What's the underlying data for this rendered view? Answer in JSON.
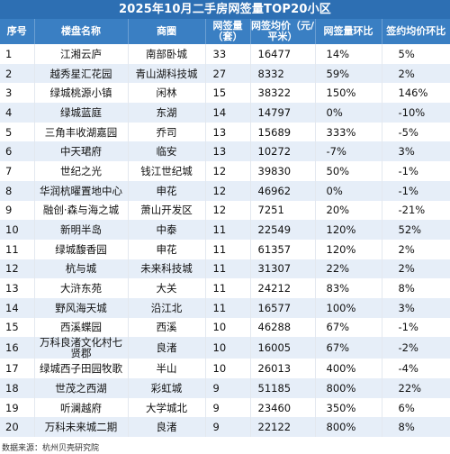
{
  "title": "2025年10月二手房网签量TOP20小区",
  "headers": {
    "rank": "序号",
    "name": "楼盘名称",
    "area": "商圈",
    "volume": "网签量（套）",
    "price": "网签均价（元/平米）",
    "volume_mom": "网签量环比",
    "price_mom": "签约均价环比"
  },
  "rows": [
    {
      "rank": "1",
      "name": "江湘云庐",
      "area": "南部卧城",
      "volume": "33",
      "price": "16477",
      "volume_mom": "14%",
      "price_mom": "5%"
    },
    {
      "rank": "2",
      "name": "越秀星汇花园",
      "area": "青山湖科技城",
      "volume": "27",
      "price": "8332",
      "volume_mom": "59%",
      "price_mom": "2%"
    },
    {
      "rank": "3",
      "name": "绿城桃源小镇",
      "area": "闲林",
      "volume": "15",
      "price": "38322",
      "volume_mom": "150%",
      "price_mom": "146%"
    },
    {
      "rank": "4",
      "name": "绿城蓝庭",
      "area": "东湖",
      "volume": "14",
      "price": "14797",
      "volume_mom": "0%",
      "price_mom": "-10%"
    },
    {
      "rank": "5",
      "name": "三角丰收湖嘉园",
      "area": "乔司",
      "volume": "13",
      "price": "15689",
      "volume_mom": "333%",
      "price_mom": "-5%"
    },
    {
      "rank": "6",
      "name": "中天珺府",
      "area": "临安",
      "volume": "13",
      "price": "10272",
      "volume_mom": "-7%",
      "price_mom": "3%"
    },
    {
      "rank": "7",
      "name": "世纪之光",
      "area": "钱江世纪城",
      "volume": "12",
      "price": "39830",
      "volume_mom": "50%",
      "price_mom": "-1%"
    },
    {
      "rank": "8",
      "name": "华润杭曜置地中心",
      "area": "申花",
      "volume": "12",
      "price": "46962",
      "volume_mom": "0%",
      "price_mom": "-1%"
    },
    {
      "rank": "9",
      "name": "融创·森与海之城",
      "area": "萧山开发区",
      "volume": "12",
      "price": "7251",
      "volume_mom": "20%",
      "price_mom": "-21%"
    },
    {
      "rank": "10",
      "name": "新明半岛",
      "area": "中泰",
      "volume": "11",
      "price": "22549",
      "volume_mom": "120%",
      "price_mom": "52%"
    },
    {
      "rank": "11",
      "name": "绿城馥香园",
      "area": "申花",
      "volume": "11",
      "price": "61357",
      "volume_mom": "120%",
      "price_mom": "2%"
    },
    {
      "rank": "12",
      "name": "杭与城",
      "area": "未来科技城",
      "volume": "11",
      "price": "31307",
      "volume_mom": "22%",
      "price_mom": "2%"
    },
    {
      "rank": "13",
      "name": "大浒东苑",
      "area": "大关",
      "volume": "11",
      "price": "24212",
      "volume_mom": "83%",
      "price_mom": "8%"
    },
    {
      "rank": "14",
      "name": "野风海天城",
      "area": "沿江北",
      "volume": "11",
      "price": "16577",
      "volume_mom": "100%",
      "price_mom": "3%"
    },
    {
      "rank": "15",
      "name": "西溪蝶园",
      "area": "西溪",
      "volume": "10",
      "price": "46288",
      "volume_mom": "67%",
      "price_mom": "-1%"
    },
    {
      "rank": "16",
      "name": "万科良渚文化村七贤郡",
      "area": "良渚",
      "volume": "10",
      "price": "16005",
      "volume_mom": "67%",
      "price_mom": "-2%"
    },
    {
      "rank": "17",
      "name": "绿城西子田园牧歌",
      "area": "半山",
      "volume": "10",
      "price": "26013",
      "volume_mom": "400%",
      "price_mom": "-4%"
    },
    {
      "rank": "18",
      "name": "世茂之西湖",
      "area": "彩虹城",
      "volume": "9",
      "price": "51185",
      "volume_mom": "800%",
      "price_mom": "22%"
    },
    {
      "rank": "19",
      "name": "听澜越府",
      "area": "大学城北",
      "volume": "9",
      "price": "23460",
      "volume_mom": "350%",
      "price_mom": "6%"
    },
    {
      "rank": "20",
      "name": "万科未来城二期",
      "area": "良渚",
      "volume": "9",
      "price": "22122",
      "volume_mom": "800%",
      "price_mom": "8%"
    }
  ],
  "source": "数据来源：杭州贝壳研究院"
}
